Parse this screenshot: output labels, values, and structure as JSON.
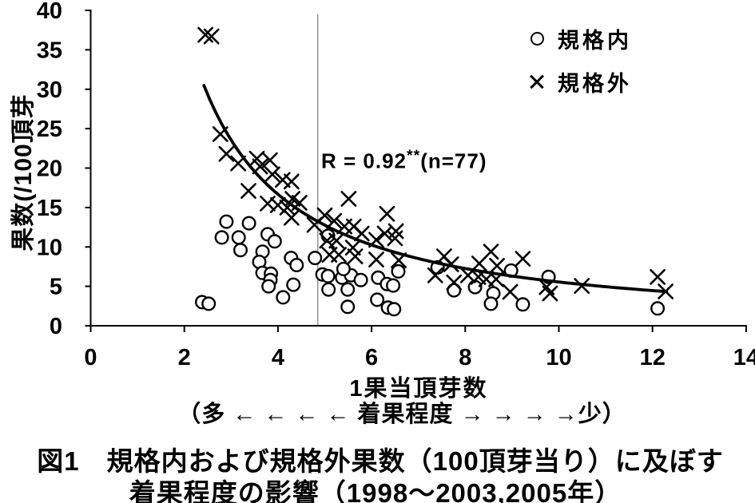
{
  "chart_data": {
    "type": "scatter",
    "xlabel": "1果当頂芽数",
    "xlabel_sub": "（多 ← ← ← ← 着果程度 → → → →少）",
    "ylabel": "果数(/100頂芽",
    "xlim": [
      0,
      14
    ],
    "ylim": [
      0,
      40
    ],
    "xticks": [
      0,
      2,
      4,
      6,
      8,
      10,
      12,
      14
    ],
    "yticks": [
      0,
      5,
      10,
      15,
      20,
      25,
      30,
      35,
      40
    ],
    "grid": false,
    "legend_position": "upper right",
    "annotation": {
      "r_label": "R = 0.92",
      "stars": "**",
      "n_label": "(n=77)"
    },
    "vline_x": 4.85,
    "fit_curve": {
      "type": "power",
      "equation": "y = 88 * x^-1.2",
      "a": 88,
      "b": -1.2,
      "x_start": 2.42,
      "x_end": 12.3
    },
    "series": [
      {
        "name": "規格内",
        "marker": "circle",
        "points": [
          [
            2.38,
            3.0
          ],
          [
            2.52,
            2.8
          ],
          [
            2.9,
            13.2
          ],
          [
            3.38,
            13.0
          ],
          [
            2.8,
            11.2
          ],
          [
            3.16,
            11.2
          ],
          [
            3.2,
            9.6
          ],
          [
            3.67,
            9.4
          ],
          [
            3.78,
            11.6
          ],
          [
            3.93,
            10.7
          ],
          [
            3.6,
            8.1
          ],
          [
            3.67,
            6.7
          ],
          [
            3.85,
            6.6
          ],
          [
            3.84,
            5.8
          ],
          [
            3.8,
            5.0
          ],
          [
            4.11,
            3.6
          ],
          [
            4.28,
            8.6
          ],
          [
            4.4,
            7.7
          ],
          [
            4.33,
            5.2
          ],
          [
            4.79,
            8.6
          ],
          [
            5.07,
            11.4
          ],
          [
            4.95,
            6.5
          ],
          [
            5.07,
            6.3
          ],
          [
            5.37,
            6.1
          ],
          [
            5.56,
            6.4
          ],
          [
            5.77,
            5.8
          ],
          [
            5.08,
            4.6
          ],
          [
            5.49,
            4.6
          ],
          [
            5.4,
            7.2
          ],
          [
            5.49,
            2.4
          ],
          [
            6.12,
            3.3
          ],
          [
            6.14,
            6.1
          ],
          [
            6.33,
            5.3
          ],
          [
            6.46,
            5.1
          ],
          [
            6.35,
            2.3
          ],
          [
            6.48,
            2.1
          ],
          [
            6.57,
            6.9
          ],
          [
            7.41,
            7.4
          ],
          [
            7.76,
            4.5
          ],
          [
            8.21,
            4.9
          ],
          [
            8.6,
            4.1
          ],
          [
            8.55,
            2.8
          ],
          [
            8.98,
            7.0
          ],
          [
            9.23,
            2.7
          ],
          [
            9.78,
            6.2
          ],
          [
            12.11,
            2.2
          ]
        ]
      },
      {
        "name": "規格外",
        "marker": "cross",
        "points": [
          [
            2.45,
            36.9
          ],
          [
            2.58,
            36.7
          ],
          [
            2.77,
            24.3
          ],
          [
            2.9,
            21.8
          ],
          [
            3.15,
            20.6
          ],
          [
            3.55,
            21.2
          ],
          [
            3.83,
            21.0
          ],
          [
            3.62,
            20.2
          ],
          [
            3.88,
            19.2
          ],
          [
            4.1,
            18.5
          ],
          [
            4.29,
            18.3
          ],
          [
            3.37,
            17.1
          ],
          [
            3.78,
            15.5
          ],
          [
            4.0,
            15.3
          ],
          [
            4.2,
            15.0
          ],
          [
            4.31,
            16.1
          ],
          [
            4.46,
            15.6
          ],
          [
            4.29,
            13.7
          ],
          [
            4.78,
            12.8
          ],
          [
            5.0,
            14.0
          ],
          [
            5.51,
            16.1
          ],
          [
            5.2,
            13.3
          ],
          [
            5.42,
            12.6
          ],
          [
            5.62,
            12.6
          ],
          [
            5.79,
            11.7
          ],
          [
            6.28,
            11.7
          ],
          [
            6.33,
            14.2
          ],
          [
            6.52,
            12.0
          ],
          [
            5.05,
            10.8
          ],
          [
            5.25,
            10.8
          ],
          [
            6.1,
            10.9
          ],
          [
            6.5,
            11.1
          ],
          [
            5.1,
            9.0
          ],
          [
            5.3,
            9.0
          ],
          [
            5.6,
            9.9
          ],
          [
            5.65,
            8.8
          ],
          [
            6.1,
            8.4
          ],
          [
            6.58,
            8.3
          ],
          [
            7.55,
            8.8
          ],
          [
            7.7,
            7.8
          ],
          [
            7.36,
            6.4
          ],
          [
            7.76,
            5.5
          ],
          [
            8.55,
            9.4
          ],
          [
            8.3,
            7.9
          ],
          [
            8.68,
            7.6
          ],
          [
            8.06,
            6.4
          ],
          [
            8.28,
            6.2
          ],
          [
            8.45,
            5.9
          ],
          [
            8.66,
            5.9
          ],
          [
            8.96,
            4.3
          ],
          [
            9.23,
            8.5
          ],
          [
            9.74,
            4.9
          ],
          [
            9.81,
            4.1
          ],
          [
            10.49,
            5.05
          ],
          [
            12.11,
            6.2
          ],
          [
            12.28,
            4.35
          ]
        ]
      }
    ],
    "legend": [
      {
        "marker": "circle",
        "label": "規格内"
      },
      {
        "marker": "cross",
        "label": "規格外"
      }
    ]
  },
  "caption": {
    "line1": "図1　規格内および規格外果数（100頂芽当り）に及ぼす",
    "line2": "着果程度の影響（1998～2003,2005年）"
  },
  "colors": {
    "ink": "#000000",
    "vline": "#999999",
    "background": "#ffffff"
  }
}
